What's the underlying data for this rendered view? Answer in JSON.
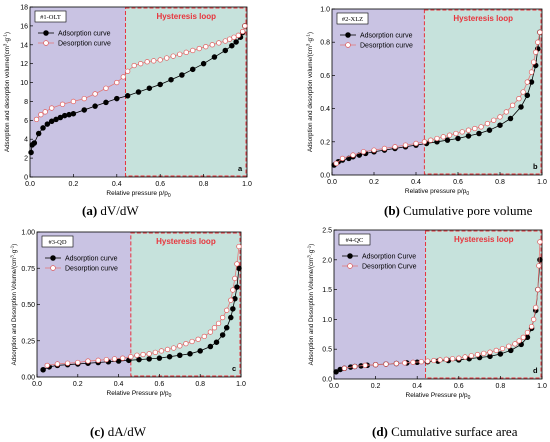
{
  "colors": {
    "left_region": "#c9c3e3",
    "right_region": "#c6e2dc",
    "hysteresis_border": "#e8343c",
    "hysteresis_text": "#e8343c",
    "adsorption": "#000000",
    "desorption_line": "#e37b7b",
    "desorption_marker_edge": "#e05a5a"
  },
  "captions": [
    {
      "letter": "(a)",
      "text": "dV/dW"
    },
    {
      "letter": "(b)",
      "text": "Cumulative pore volume"
    },
    {
      "letter": "(c)",
      "text": "dA/dW"
    },
    {
      "letter": "(d)",
      "text": "Cumulative surface area"
    }
  ],
  "chart_data": [
    {
      "type": "line",
      "sample_label": "#1-OLT",
      "panel_letter": "a",
      "hysteresis_label": "Hysteresis loop",
      "hysteresis_start": 0.44,
      "xlabel": "Relative pressure p/p",
      "xlabel_sub": "0",
      "ylabel": "Adsorption and desorption volume/(cm",
      "ylabel_sup1": "3",
      "ylabel_mid": "·g",
      "ylabel_sup2": "-1",
      "ylabel_end": ")",
      "xlim": [
        0,
        1.0
      ],
      "ylim": [
        0,
        18
      ],
      "xticks": [
        0.0,
        0.2,
        0.4,
        0.6,
        0.8,
        1.0
      ],
      "xtick_labels": [
        "0.0",
        "0.2",
        "0.4",
        "0.6",
        "0.8",
        "1.0"
      ],
      "yticks": [
        0,
        2,
        4,
        6,
        8,
        10,
        12,
        14,
        16,
        18
      ],
      "ytick_labels": [
        "0",
        "2",
        "4",
        "6",
        "8",
        "10",
        "12",
        "14",
        "16",
        "18"
      ],
      "legend_position": "top-left",
      "series": [
        {
          "name": "Adsorption curve",
          "style": "filled",
          "x": [
            0.005,
            0.01,
            0.02,
            0.04,
            0.06,
            0.08,
            0.1,
            0.12,
            0.14,
            0.16,
            0.18,
            0.2,
            0.25,
            0.3,
            0.35,
            0.4,
            0.45,
            0.5,
            0.55,
            0.6,
            0.65,
            0.7,
            0.75,
            0.8,
            0.85,
            0.9,
            0.93,
            0.95,
            0.97,
            0.98,
            0.99
          ],
          "y": [
            2.6,
            3.4,
            3.6,
            4.6,
            5.2,
            5.6,
            5.9,
            6.1,
            6.3,
            6.5,
            6.6,
            6.7,
            7.1,
            7.5,
            7.9,
            8.3,
            8.6,
            9.0,
            9.4,
            9.8,
            10.3,
            10.8,
            11.4,
            12.0,
            12.7,
            13.4,
            13.9,
            14.3,
            14.8,
            15.3,
            16.0
          ]
        },
        {
          "name": "Desorption curve",
          "style": "open",
          "x": [
            0.99,
            0.98,
            0.96,
            0.94,
            0.92,
            0.9,
            0.87,
            0.84,
            0.81,
            0.78,
            0.75,
            0.72,
            0.69,
            0.66,
            0.63,
            0.6,
            0.57,
            0.54,
            0.51,
            0.48,
            0.45,
            0.43,
            0.4,
            0.35,
            0.3,
            0.25,
            0.2,
            0.15,
            0.1,
            0.07,
            0.05,
            0.03
          ],
          "y": [
            16.0,
            15.4,
            15.0,
            14.8,
            14.6,
            14.4,
            14.2,
            14.0,
            13.8,
            13.6,
            13.4,
            13.2,
            13.0,
            12.8,
            12.6,
            12.4,
            12.3,
            12.2,
            12.0,
            11.8,
            11.2,
            10.6,
            10.0,
            9.4,
            8.8,
            8.3,
            8.0,
            7.7,
            7.3,
            6.9,
            6.6,
            6.1
          ]
        }
      ]
    },
    {
      "type": "line",
      "sample_label": "#2-XLZ",
      "panel_letter": "b",
      "hysteresis_label": "Hysteresis loop",
      "hysteresis_start": 0.44,
      "xlabel": "Relative pressure p/p",
      "xlabel_sub": "0",
      "ylabel": "Adsorption and desorption volume/(cm",
      "ylabel_sup1": "3",
      "ylabel_mid": "·g",
      "ylabel_sup2": "-1",
      "ylabel_end": ")",
      "xlim": [
        0,
        1.0
      ],
      "ylim": [
        0,
        1.0
      ],
      "xticks": [
        0.0,
        0.2,
        0.4,
        0.6,
        0.8,
        1.0
      ],
      "xtick_labels": [
        "0.0",
        "0.2",
        "0.4",
        "0.6",
        "0.8",
        "1.0"
      ],
      "yticks": [
        0.0,
        0.2,
        0.4,
        0.6,
        0.8,
        1.0
      ],
      "ytick_labels": [
        "0.0",
        "0.2",
        "0.4",
        "0.6",
        "0.8",
        "1.0"
      ],
      "legend_position": "top-left",
      "series": [
        {
          "name": "Adsorption curve",
          "style": "filled",
          "x": [
            0.01,
            0.03,
            0.05,
            0.08,
            0.1,
            0.13,
            0.16,
            0.2,
            0.25,
            0.3,
            0.35,
            0.4,
            0.45,
            0.5,
            0.55,
            0.6,
            0.65,
            0.7,
            0.75,
            0.8,
            0.85,
            0.9,
            0.93,
            0.95,
            0.97,
            0.98,
            0.99
          ],
          "y": [
            0.06,
            0.08,
            0.09,
            0.1,
            0.11,
            0.12,
            0.13,
            0.14,
            0.15,
            0.16,
            0.17,
            0.18,
            0.19,
            0.2,
            0.21,
            0.22,
            0.235,
            0.25,
            0.27,
            0.3,
            0.34,
            0.41,
            0.48,
            0.56,
            0.66,
            0.76,
            0.86
          ]
        },
        {
          "name": "Desorption curve",
          "style": "open",
          "x": [
            0.99,
            0.98,
            0.97,
            0.96,
            0.95,
            0.93,
            0.91,
            0.89,
            0.86,
            0.83,
            0.8,
            0.77,
            0.74,
            0.71,
            0.68,
            0.65,
            0.62,
            0.59,
            0.56,
            0.53,
            0.5,
            0.47,
            0.44,
            0.4,
            0.35,
            0.3,
            0.25,
            0.2,
            0.15,
            0.1,
            0.05,
            0.02
          ],
          "y": [
            0.86,
            0.8,
            0.74,
            0.68,
            0.62,
            0.56,
            0.5,
            0.46,
            0.42,
            0.38,
            0.35,
            0.33,
            0.31,
            0.29,
            0.28,
            0.27,
            0.26,
            0.25,
            0.24,
            0.23,
            0.22,
            0.21,
            0.2,
            0.19,
            0.18,
            0.17,
            0.16,
            0.15,
            0.14,
            0.12,
            0.1,
            0.07
          ]
        }
      ]
    },
    {
      "type": "line",
      "sample_label": "#3-QD",
      "panel_letter": "c",
      "hysteresis_label": "Hysteresis loop",
      "hysteresis_start": 0.46,
      "xlabel": "Relative Pressure p/p",
      "xlabel_sub": "0",
      "ylabel": "Adsorption and Desorption Volume/(cm",
      "ylabel_sup1": "3",
      "ylabel_mid": "·g",
      "ylabel_sup2": "-1",
      "ylabel_end": ")",
      "xlim": [
        0,
        1.0
      ],
      "ylim": [
        0,
        1.0
      ],
      "xticks": [
        0.0,
        0.2,
        0.4,
        0.6,
        0.8,
        1.0
      ],
      "xtick_labels": [
        "0.0",
        "0.2",
        "0.4",
        "0.6",
        "0.8",
        "1.0"
      ],
      "yticks": [
        0.0,
        0.25,
        0.5,
        0.75,
        1.0
      ],
      "ytick_labels": [
        "0.00",
        "0.25",
        "0.50",
        "0.75",
        "1.00"
      ],
      "legend_position": "top-left",
      "series": [
        {
          "name": "Adsorption curve",
          "style": "filled",
          "x": [
            0.03,
            0.06,
            0.1,
            0.15,
            0.2,
            0.25,
            0.3,
            0.35,
            0.4,
            0.45,
            0.5,
            0.55,
            0.6,
            0.65,
            0.7,
            0.75,
            0.8,
            0.85,
            0.88,
            0.91,
            0.93,
            0.95,
            0.96,
            0.97,
            0.98,
            0.99
          ],
          "y": [
            0.05,
            0.07,
            0.08,
            0.085,
            0.09,
            0.095,
            0.1,
            0.105,
            0.11,
            0.115,
            0.12,
            0.125,
            0.13,
            0.14,
            0.15,
            0.16,
            0.18,
            0.21,
            0.24,
            0.29,
            0.34,
            0.41,
            0.47,
            0.54,
            0.62,
            0.75
          ]
        },
        {
          "name": "Desorption curve",
          "style": "open",
          "x": [
            0.99,
            0.98,
            0.97,
            0.96,
            0.95,
            0.93,
            0.91,
            0.89,
            0.87,
            0.85,
            0.82,
            0.79,
            0.76,
            0.73,
            0.7,
            0.67,
            0.64,
            0.61,
            0.58,
            0.55,
            0.52,
            0.49,
            0.46,
            0.42,
            0.38,
            0.34,
            0.3,
            0.25,
            0.2,
            0.15,
            0.1,
            0.05
          ],
          "y": [
            0.9,
            0.78,
            0.68,
            0.6,
            0.53,
            0.46,
            0.41,
            0.37,
            0.34,
            0.31,
            0.28,
            0.26,
            0.245,
            0.23,
            0.215,
            0.2,
            0.19,
            0.18,
            0.17,
            0.16,
            0.155,
            0.15,
            0.14,
            0.13,
            0.125,
            0.12,
            0.115,
            0.11,
            0.1,
            0.095,
            0.09,
            0.08
          ]
        }
      ]
    },
    {
      "type": "line",
      "sample_label": "#4-QC",
      "panel_letter": "d",
      "hysteresis_label": "Hysteresis loop",
      "hysteresis_start": 0.44,
      "xlabel": "Relative Pressure p/p",
      "xlabel_sub": "0",
      "ylabel": "Adsorption and Desorption Volume/(cm",
      "ylabel_sup1": "3",
      "ylabel_mid": "·g",
      "ylabel_sup2": "-1",
      "ylabel_end": ")",
      "xlim": [
        0,
        1.0
      ],
      "ylim": [
        0,
        2.5
      ],
      "xticks": [
        0.0,
        0.2,
        0.4,
        0.6,
        0.8,
        1.0
      ],
      "xtick_labels": [
        "0.0",
        "0.2",
        "0.4",
        "0.6",
        "0.8",
        "1.0"
      ],
      "yticks": [
        0.0,
        0.5,
        1.0,
        1.5,
        2.0,
        2.5
      ],
      "ytick_labels": [
        "0.0",
        "0.5",
        "1.0",
        "1.5",
        "2.0",
        "2.5"
      ],
      "legend_position": "top-left",
      "series": [
        {
          "name": "Adsorption Curve",
          "style": "filled",
          "x": [
            0.01,
            0.03,
            0.05,
            0.08,
            0.1,
            0.13,
            0.16,
            0.2,
            0.25,
            0.3,
            0.35,
            0.4,
            0.45,
            0.5,
            0.55,
            0.6,
            0.65,
            0.7,
            0.75,
            0.8,
            0.85,
            0.9,
            0.93,
            0.95,
            0.97,
            0.98,
            0.99
          ],
          "y": [
            0.12,
            0.16,
            0.18,
            0.2,
            0.21,
            0.22,
            0.23,
            0.24,
            0.25,
            0.26,
            0.27,
            0.28,
            0.29,
            0.3,
            0.31,
            0.32,
            0.34,
            0.36,
            0.38,
            0.42,
            0.48,
            0.58,
            0.7,
            0.85,
            1.15,
            1.5,
            2.0
          ]
        },
        {
          "name": "Desorption Curve",
          "style": "open",
          "x": [
            0.99,
            0.985,
            0.98,
            0.97,
            0.96,
            0.95,
            0.93,
            0.91,
            0.89,
            0.87,
            0.84,
            0.81,
            0.78,
            0.75,
            0.72,
            0.69,
            0.66,
            0.63,
            0.6,
            0.57,
            0.54,
            0.51,
            0.48,
            0.45,
            0.42,
            0.38,
            0.34,
            0.3,
            0.25,
            0.2,
            0.15,
            0.1,
            0.05
          ],
          "y": [
            2.3,
            1.9,
            1.5,
            1.2,
            1.0,
            0.88,
            0.78,
            0.7,
            0.64,
            0.59,
            0.55,
            0.51,
            0.48,
            0.45,
            0.43,
            0.41,
            0.39,
            0.37,
            0.35,
            0.34,
            0.33,
            0.32,
            0.31,
            0.3,
            0.29,
            0.28,
            0.27,
            0.26,
            0.25,
            0.24,
            0.23,
            0.21,
            0.18
          ]
        }
      ]
    }
  ]
}
